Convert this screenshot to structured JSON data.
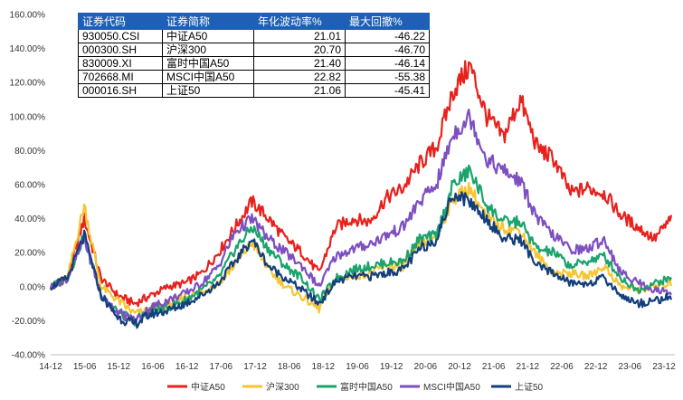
{
  "summary_table": {
    "headers": [
      "证券代码",
      "证券简称",
      "年化波动率%",
      "最大回撤%"
    ],
    "rows": [
      [
        "930050.CSI",
        "中证A50",
        "21.01",
        "-46.22"
      ],
      [
        "000300.SH",
        "沪深300",
        "20.70",
        "-46.70"
      ],
      [
        "830009.XI",
        "富时中国A50",
        "21.40",
        "-46.14"
      ],
      [
        "702668.MI",
        "MSCI中国A50",
        "22.82",
        "-55.38"
      ],
      [
        "000016.SH",
        "上证50",
        "21.06",
        "-45.41"
      ]
    ]
  },
  "chart_data": {
    "type": "line",
    "title": "",
    "xlabel": "",
    "ylabel": "",
    "x_ticks": [
      "14-12",
      "15-06",
      "15-12",
      "16-06",
      "16-12",
      "17-06",
      "17-12",
      "18-06",
      "18-12",
      "19-06",
      "19-12",
      "20-06",
      "20-12",
      "21-06",
      "21-12",
      "22-06",
      "22-12",
      "23-06",
      "23-12"
    ],
    "y_ticks": [
      "160.00%",
      "140.00%",
      "120.00%",
      "100.00%",
      "80.00%",
      "60.00%",
      "40.00%",
      "20.00%",
      "0.00%",
      "-20.00%",
      "-40.00%"
    ],
    "ylim": [
      -40,
      160
    ],
    "y_unit": "%",
    "legend_position": "bottom",
    "grid": false,
    "x": [
      "14-12",
      "15-03",
      "15-06",
      "15-09",
      "15-12",
      "16-03",
      "16-06",
      "16-09",
      "16-12",
      "17-03",
      "17-06",
      "17-09",
      "17-12",
      "18-03",
      "18-06",
      "18-09",
      "18-12",
      "19-03",
      "19-06",
      "19-09",
      "19-12",
      "20-03",
      "20-06",
      "20-09",
      "20-12",
      "21-02",
      "21-06",
      "21-09",
      "21-12",
      "22-03",
      "22-06",
      "22-09",
      "22-12",
      "23-03",
      "23-06",
      "23-09",
      "23-12",
      "24-01"
    ],
    "series": [
      {
        "name": "中证A50",
        "color": "#e8211c",
        "values": [
          0,
          5,
          40,
          5,
          -5,
          -10,
          -5,
          0,
          2,
          8,
          20,
          35,
          50,
          40,
          28,
          20,
          8,
          35,
          40,
          38,
          52,
          58,
          72,
          82,
          115,
          130,
          100,
          88,
          110,
          82,
          75,
          55,
          58,
          55,
          42,
          35,
          28,
          40
        ]
      },
      {
        "name": "沪深300",
        "color": "#f7c531",
        "values": [
          0,
          5,
          48,
          0,
          -8,
          -16,
          -14,
          -10,
          -6,
          -3,
          2,
          13,
          26,
          10,
          0,
          -6,
          -13,
          5,
          6,
          8,
          12,
          12,
          25,
          30,
          52,
          58,
          40,
          35,
          33,
          18,
          8,
          8,
          6,
          12,
          0,
          -2,
          0,
          2
        ]
      },
      {
        "name": "富时中国A50",
        "color": "#1aa36c",
        "values": [
          0,
          5,
          30,
          -5,
          -15,
          -20,
          -14,
          -12,
          -8,
          -2,
          5,
          22,
          35,
          22,
          12,
          5,
          -8,
          5,
          10,
          12,
          14,
          15,
          28,
          30,
          60,
          68,
          48,
          38,
          38,
          22,
          20,
          12,
          15,
          18,
          5,
          -2,
          2,
          5
        ]
      },
      {
        "name": "MSCI中国A50",
        "color": "#7d4fc1",
        "values": [
          0,
          5,
          28,
          -5,
          -15,
          -20,
          -12,
          -8,
          -4,
          2,
          12,
          32,
          40,
          28,
          20,
          12,
          0,
          18,
          22,
          25,
          30,
          35,
          50,
          60,
          90,
          100,
          75,
          68,
          62,
          40,
          30,
          22,
          22,
          28,
          8,
          3,
          -2,
          -3
        ]
      },
      {
        "name": "上证50",
        "color": "#133f7c",
        "values": [
          0,
          5,
          30,
          -5,
          -18,
          -22,
          -16,
          -14,
          -10,
          -5,
          2,
          15,
          28,
          12,
          5,
          -2,
          -10,
          3,
          6,
          6,
          8,
          10,
          22,
          28,
          55,
          50,
          40,
          28,
          28,
          12,
          8,
          2,
          2,
          5,
          -5,
          -10,
          -8,
          -6
        ]
      }
    ]
  }
}
